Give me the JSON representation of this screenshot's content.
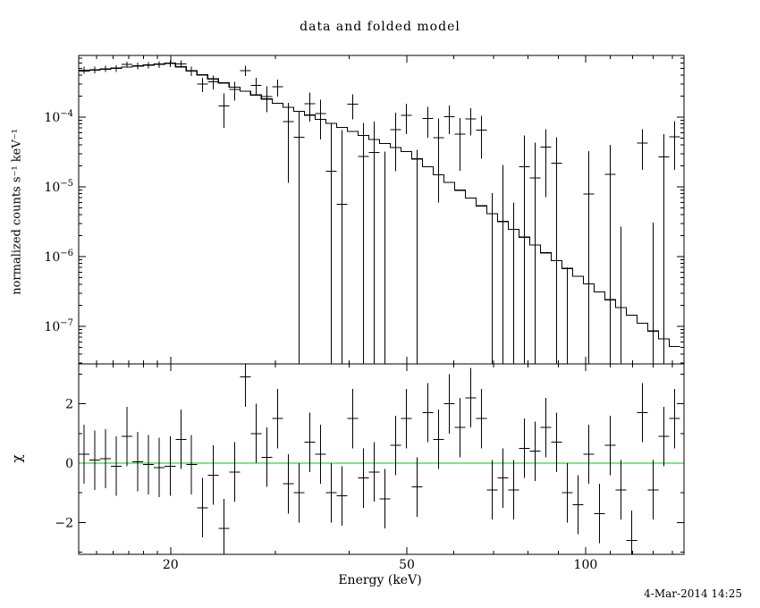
{
  "labels": {
    "title": "data and folded model",
    "xlabel": "Energy (keV)",
    "ylabel_top": "normalized counts s⁻¹ keV⁻¹",
    "ylabel_bottom": "χ",
    "timestamp": "4-Mar-2014 14:25"
  },
  "colors": {
    "background": "#ffffff",
    "foreground": "#000000",
    "model_line": "#000000",
    "data_marks": "#000000",
    "zero_line": "#00cc00"
  },
  "chart_data": [
    {
      "type": "scatter",
      "panel": "top",
      "title": "data and folded model",
      "xlabel": "Energy (keV)",
      "ylabel": "normalized counts s⁻¹ keV⁻¹",
      "xscale": "log",
      "yscale": "log",
      "xlim": [
        14.0,
        146.5
      ],
      "ylim": [
        2.9e-08,
        0.00077
      ],
      "x_ticks_major": [
        20,
        50,
        100
      ],
      "x_tick_labels": [
        "20",
        "50",
        "100"
      ],
      "x_ticks_minor": [
        15,
        16,
        17,
        18,
        19,
        30,
        40,
        60,
        70,
        80,
        90,
        110,
        120,
        130,
        140
      ],
      "y_tick_exponents": [
        -7,
        -6,
        -5,
        -4
      ],
      "grid": false,
      "legend": "none",
      "bins": {
        "centers": [
          14.3,
          14.91,
          15.54,
          16.2,
          16.89,
          17.61,
          18.36,
          19.14,
          19.96,
          20.81,
          21.69,
          22.62,
          23.58,
          24.58,
          25.63,
          26.72,
          27.85,
          29.04,
          30.27,
          31.56,
          32.9,
          34.3,
          35.76,
          37.28,
          38.87,
          40.52,
          42.24,
          44.04,
          45.91,
          47.86,
          49.9,
          52.02,
          54.23,
          56.54,
          58.94,
          61.45,
          64.06,
          66.78,
          69.62,
          72.58,
          75.67,
          78.88,
          82.24,
          85.73,
          89.38,
          93.18,
          97.14,
          101.27,
          105.57,
          110.06,
          114.74,
          119.62,
          124.7,
          130.0,
          135.53,
          141.29
        ],
        "model": [
          0.000459,
          0.000474,
          0.00049,
          0.000507,
          0.000524,
          0.000542,
          0.00056,
          0.000579,
          0.000599,
          0.000528,
          0.000463,
          0.000405,
          0.000354,
          0.00031,
          0.000271,
          0.000237,
          0.000208,
          0.000182,
          0.000159,
          0.000139,
          0.000122,
          0.000107,
          9.35e-05,
          8.18e-05,
          7.16e-05,
          6.27e-05,
          5.48e-05,
          4.8e-05,
          4.2e-05,
          3.68e-05,
          3.22e-05,
          2.52e-05,
          1.95e-05,
          1.5e-05,
          1.16e-05,
          8.97e-06,
          6.93e-06,
          5.35e-06,
          4.13e-06,
          3.19e-06,
          2.47e-06,
          1.91e-06,
          1.47e-06,
          1.14e-06,
          8.79e-07,
          6.79e-07,
          5.25e-07,
          4.06e-07,
          3.12e-07,
          2.41e-07,
          1.87e-07,
          1.45e-07,
          1.11e-07,
          8.59e-08,
          6.64e-08,
          5.15e-08
        ],
        "data": [
          0.000476,
          0.000479,
          0.000498,
          0.000502,
          0.000574,
          0.000545,
          0.000557,
          0.00057,
          0.000593,
          0.000584,
          0.00046,
          0.0003,
          0.000324,
          0.000145,
          0.000249,
          0.000469,
          0.000288,
          0.000198,
          0.000272,
          8.65e-05,
          5.2e-05,
          0.000156,
          0.000113,
          1.68e-05,
          5.6e-06,
          0.000153,
          2.73e-05,
          3.15e-05,
          -1.8e-05,
          6.68e-05,
          0.000107,
          -1.08e-05,
          9.6e-05,
          5.1e-05,
          0.000102,
          5.7e-05,
          9.49e-05,
          6.54e-05,
          -3.19e-05,
          -1.43e-05,
          -2.9e-05,
          1.94e-05,
          1.35e-05,
          3.71e-05,
          2.19e-05,
          -2.93e-05,
          -3.45e-05,
          7.9e-06,
          -4.22e-05,
          1.52e-05,
          -2.23e-05,
          -6.49e-05,
          4.26e-05,
          -2.69e-05,
          2.71e-05,
          5.26e-05
        ],
        "err": [
          5.5e-05,
          5.2e-05,
          5e-05,
          5.5e-05,
          5.6e-05,
          6e-05,
          5.8e-05,
          6.2e-05,
          6.5e-05,
          7e-05,
          7e-05,
          7e-05,
          7.5e-05,
          7.5e-05,
          7.5e-05,
          8e-05,
          8e-05,
          8e-05,
          7.5e-05,
          7.5e-05,
          7e-05,
          7e-05,
          6.5e-05,
          6.5e-05,
          6e-05,
          6e-05,
          5.5e-05,
          5.5e-05,
          5e-05,
          5e-05,
          5e-05,
          4.5e-05,
          4.5e-05,
          4.5e-05,
          4.5e-05,
          4e-05,
          4e-05,
          4e-05,
          4e-05,
          3.5e-05,
          3.5e-05,
          3.5e-05,
          3e-05,
          3e-05,
          3e-05,
          3e-05,
          2.5e-05,
          2.5e-05,
          2.5e-05,
          2.5e-05,
          2.5e-05,
          2.5e-05,
          2.5e-05,
          3e-05,
          3e-05,
          3.5e-05
        ]
      }
    },
    {
      "type": "scatter",
      "panel": "bottom",
      "ylabel": "χ",
      "xlabel": "Energy (keV)",
      "xscale": "log",
      "yscale": "linear",
      "ylim": [
        -3.07,
        3.34
      ],
      "y_ticks_major": [
        -2,
        0,
        2
      ],
      "y_ticks_minor": [
        -3,
        -1,
        1,
        3
      ],
      "zero_line": 0,
      "zero_line_color": "#00cc00",
      "chi_err": 1,
      "chi": [
        0.3,
        0.1,
        0.15,
        -0.1,
        0.9,
        0.05,
        -0.05,
        -0.15,
        -0.1,
        0.8,
        -0.05,
        -1.5,
        -0.4,
        -2.2,
        -0.3,
        2.9,
        1.0,
        0.2,
        1.5,
        -0.7,
        -1.0,
        0.7,
        0.3,
        -1.0,
        -1.1,
        1.5,
        -0.5,
        -0.3,
        -1.2,
        0.6,
        1.5,
        -0.8,
        1.7,
        0.8,
        2.0,
        1.2,
        2.2,
        1.5,
        -0.9,
        -0.5,
        -0.9,
        0.5,
        0.4,
        1.2,
        0.7,
        -1.0,
        -1.4,
        0.3,
        -1.7,
        0.6,
        -0.9,
        -2.6,
        1.7,
        -0.9,
        0.9,
        1.5
      ]
    }
  ]
}
